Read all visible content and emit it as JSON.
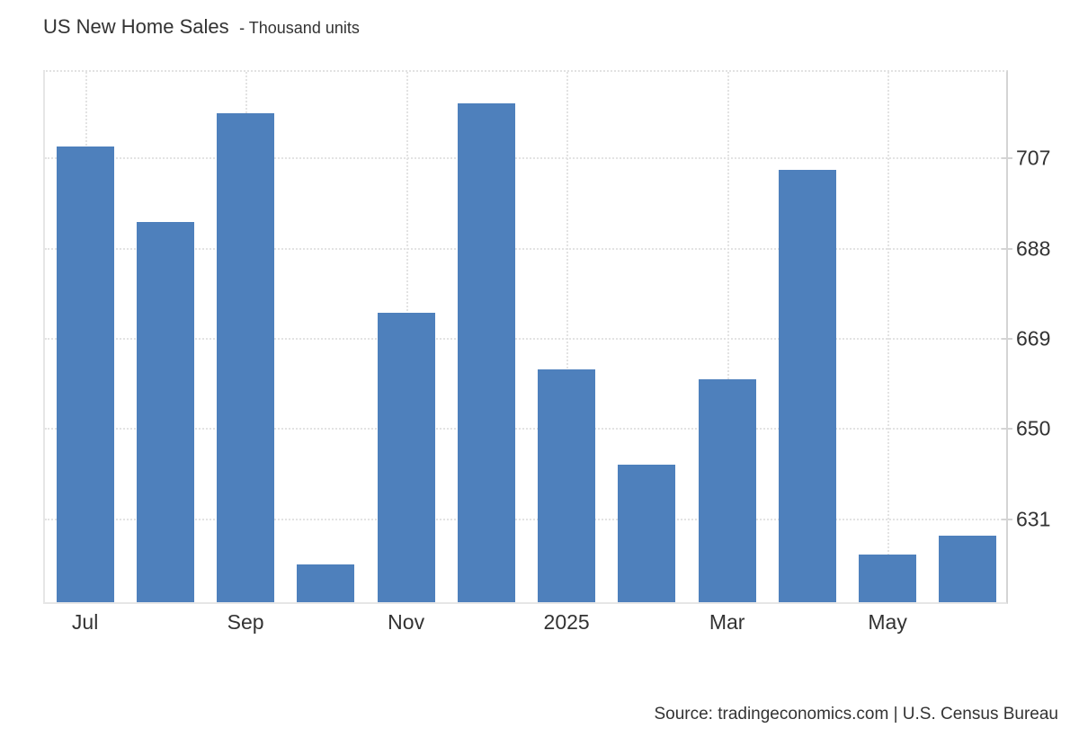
{
  "header": {
    "title": "US New Home Sales",
    "subtitle": "- Thousand units"
  },
  "footer": {
    "source": "Source: tradingeconomics.com | U.S. Census Bureau"
  },
  "colors": {
    "bar": "#4e80bc",
    "grid": "#e3e3e3",
    "plot_border": "#e6e6e6",
    "axis_line": "#d4d4d4",
    "text": "#333333",
    "background": "#ffffff"
  },
  "chart_data": {
    "type": "bar",
    "title": "US New Home Sales",
    "subtitle": "Thousand units",
    "categories": [
      "Jul 2024",
      "Aug 2024",
      "Sep 2024",
      "Oct 2024",
      "Nov 2024",
      "Dec 2024",
      "Jan 2025",
      "Feb 2025",
      "Mar 2025",
      "Apr 2025",
      "May 2025",
      "Jun 2025"
    ],
    "values": [
      709,
      693,
      716,
      621,
      674,
      718,
      662,
      642,
      660,
      704,
      623,
      627
    ],
    "x_tick_labels": [
      {
        "index": 0,
        "label": "Jul"
      },
      {
        "index": 2,
        "label": "Sep"
      },
      {
        "index": 4,
        "label": "Nov"
      },
      {
        "index": 6,
        "label": "2025"
      },
      {
        "index": 8,
        "label": "Mar"
      },
      {
        "index": 10,
        "label": "May"
      }
    ],
    "y_ticks": [
      631,
      650,
      669,
      688,
      707
    ],
    "ylim": [
      613,
      725
    ],
    "ylabel": "Thousand units",
    "xlabel": "",
    "grid": true,
    "legend": false,
    "yaxis_side": "right"
  }
}
